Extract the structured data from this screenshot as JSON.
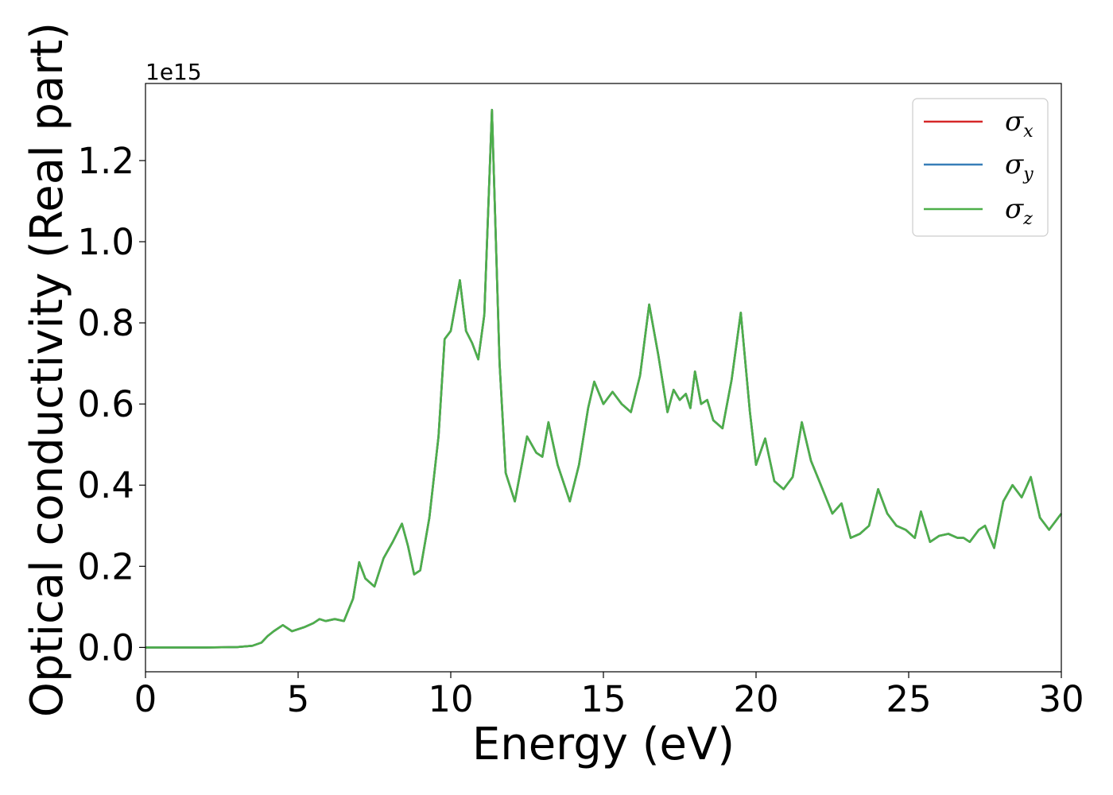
{
  "chart_data": {
    "type": "line",
    "title": "",
    "xlabel": "Energy (eV)",
    "ylabel": "Optical conductivity (Real part)",
    "y_offset_text": "1e15",
    "y_multiplier": 1000000000000000.0,
    "xlim": [
      0,
      30
    ],
    "ylim": [
      -0.06,
      1.39
    ],
    "xticks": [
      0,
      5,
      10,
      15,
      20,
      25,
      30
    ],
    "xtick_labels": [
      "0",
      "5",
      "10",
      "15",
      "20",
      "25",
      "30"
    ],
    "yticks": [
      0.0,
      0.2,
      0.4,
      0.6,
      0.8,
      1.0,
      1.2
    ],
    "ytick_labels": [
      "0.0",
      "0.2",
      "0.4",
      "0.6",
      "0.8",
      "1.0",
      "1.2"
    ],
    "grid": false,
    "legend_position": "top-right",
    "x": [
      0,
      1,
      2,
      3,
      3.5,
      3.8,
      4.0,
      4.2,
      4.5,
      4.8,
      5.2,
      5.5,
      5.7,
      5.9,
      6.2,
      6.5,
      6.8,
      7.0,
      7.2,
      7.5,
      7.8,
      8.1,
      8.4,
      8.6,
      8.8,
      9.0,
      9.3,
      9.6,
      9.8,
      10.0,
      10.3,
      10.5,
      10.7,
      10.9,
      11.1,
      11.35,
      11.6,
      11.8,
      12.1,
      12.5,
      12.8,
      13.0,
      13.2,
      13.5,
      13.9,
      14.2,
      14.5,
      14.7,
      15.0,
      15.3,
      15.6,
      15.9,
      16.2,
      16.5,
      16.8,
      17.1,
      17.3,
      17.5,
      17.7,
      17.85,
      18.0,
      18.2,
      18.4,
      18.6,
      18.9,
      19.2,
      19.5,
      19.8,
      20.0,
      20.3,
      20.6,
      20.9,
      21.2,
      21.5,
      21.8,
      22.1,
      22.5,
      22.8,
      23.1,
      23.4,
      23.7,
      24.0,
      24.3,
      24.6,
      24.9,
      25.2,
      25.4,
      25.7,
      26.0,
      26.3,
      26.6,
      26.8,
      27.0,
      27.3,
      27.5,
      27.8,
      28.1,
      28.4,
      28.7,
      29.0,
      29.3,
      29.6,
      30.0
    ],
    "series": [
      {
        "name": "σx",
        "color": "#d62728",
        "values": [
          0,
          0,
          0,
          0.001,
          0.004,
          0.012,
          0.028,
          0.04,
          0.055,
          0.04,
          0.05,
          0.06,
          0.07,
          0.065,
          0.07,
          0.065,
          0.12,
          0.21,
          0.17,
          0.15,
          0.22,
          0.26,
          0.305,
          0.25,
          0.18,
          0.19,
          0.32,
          0.52,
          0.76,
          0.78,
          0.905,
          0.78,
          0.75,
          0.71,
          0.82,
          1.325,
          0.7,
          0.43,
          0.36,
          0.52,
          0.48,
          0.47,
          0.555,
          0.45,
          0.36,
          0.45,
          0.59,
          0.655,
          0.6,
          0.63,
          0.6,
          0.58,
          0.67,
          0.845,
          0.72,
          0.58,
          0.635,
          0.61,
          0.625,
          0.59,
          0.68,
          0.6,
          0.61,
          0.56,
          0.54,
          0.66,
          0.825,
          0.58,
          0.45,
          0.515,
          0.41,
          0.39,
          0.42,
          0.555,
          0.46,
          0.405,
          0.33,
          0.355,
          0.27,
          0.28,
          0.3,
          0.39,
          0.33,
          0.3,
          0.29,
          0.27,
          0.335,
          0.26,
          0.275,
          0.28,
          0.27,
          0.27,
          0.26,
          0.29,
          0.3,
          0.245,
          0.36,
          0.4,
          0.37,
          0.42,
          0.32,
          0.29,
          0.33
        ]
      },
      {
        "name": "σy",
        "color": "#377eb8",
        "values": [
          0,
          0,
          0,
          0.001,
          0.004,
          0.012,
          0.028,
          0.04,
          0.055,
          0.04,
          0.05,
          0.06,
          0.07,
          0.065,
          0.07,
          0.065,
          0.12,
          0.21,
          0.17,
          0.15,
          0.22,
          0.26,
          0.305,
          0.25,
          0.18,
          0.19,
          0.32,
          0.52,
          0.76,
          0.78,
          0.905,
          0.78,
          0.75,
          0.71,
          0.82,
          1.325,
          0.7,
          0.43,
          0.36,
          0.52,
          0.48,
          0.47,
          0.555,
          0.45,
          0.36,
          0.45,
          0.59,
          0.655,
          0.6,
          0.63,
          0.6,
          0.58,
          0.67,
          0.845,
          0.72,
          0.58,
          0.635,
          0.61,
          0.625,
          0.59,
          0.68,
          0.6,
          0.61,
          0.56,
          0.54,
          0.66,
          0.825,
          0.58,
          0.45,
          0.515,
          0.41,
          0.39,
          0.42,
          0.555,
          0.46,
          0.405,
          0.33,
          0.355,
          0.27,
          0.28,
          0.3,
          0.39,
          0.33,
          0.3,
          0.29,
          0.27,
          0.335,
          0.26,
          0.275,
          0.28,
          0.27,
          0.27,
          0.26,
          0.29,
          0.3,
          0.245,
          0.36,
          0.4,
          0.37,
          0.42,
          0.32,
          0.29,
          0.33
        ]
      },
      {
        "name": "σz",
        "color": "#4daf4a",
        "values": [
          0,
          0,
          0,
          0.001,
          0.004,
          0.012,
          0.028,
          0.04,
          0.055,
          0.04,
          0.05,
          0.06,
          0.07,
          0.065,
          0.07,
          0.065,
          0.12,
          0.21,
          0.17,
          0.15,
          0.22,
          0.26,
          0.305,
          0.25,
          0.18,
          0.19,
          0.32,
          0.52,
          0.76,
          0.78,
          0.905,
          0.78,
          0.75,
          0.71,
          0.82,
          1.325,
          0.7,
          0.43,
          0.36,
          0.52,
          0.48,
          0.47,
          0.555,
          0.45,
          0.36,
          0.45,
          0.59,
          0.655,
          0.6,
          0.63,
          0.6,
          0.58,
          0.67,
          0.845,
          0.72,
          0.58,
          0.635,
          0.61,
          0.625,
          0.59,
          0.68,
          0.6,
          0.61,
          0.56,
          0.54,
          0.66,
          0.825,
          0.58,
          0.45,
          0.515,
          0.41,
          0.39,
          0.42,
          0.555,
          0.46,
          0.405,
          0.33,
          0.355,
          0.27,
          0.28,
          0.3,
          0.39,
          0.33,
          0.3,
          0.29,
          0.27,
          0.335,
          0.26,
          0.275,
          0.28,
          0.27,
          0.27,
          0.26,
          0.29,
          0.3,
          0.245,
          0.36,
          0.4,
          0.37,
          0.42,
          0.32,
          0.29,
          0.33
        ]
      }
    ],
    "legend": [
      {
        "symbol": "σ",
        "sub": "x",
        "color": "#d62728"
      },
      {
        "symbol": "σ",
        "sub": "y",
        "color": "#377eb8"
      },
      {
        "symbol": "σ",
        "sub": "z",
        "color": "#4daf4a"
      }
    ]
  }
}
